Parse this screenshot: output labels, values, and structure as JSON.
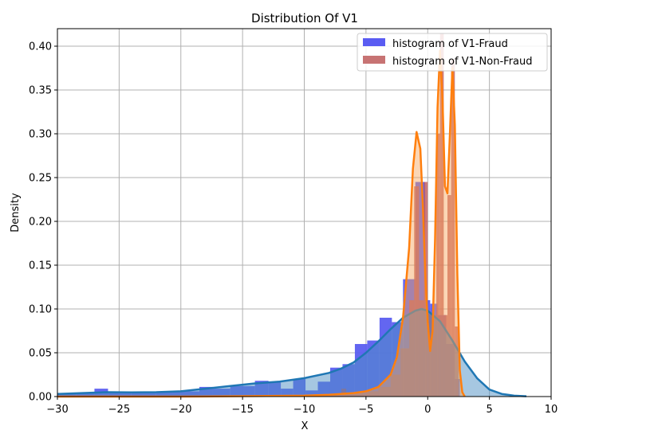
{
  "chart_data": {
    "type": "bar",
    "title": "Distribution Of V1",
    "xlabel": "X",
    "ylabel": "Density",
    "xlim": [
      -30,
      10
    ],
    "ylim": [
      0,
      0.42
    ],
    "grid": true,
    "legend_position": "top-right",
    "xticks": [
      -30,
      -25,
      -20,
      -15,
      -10,
      -5,
      0,
      5,
      10
    ],
    "xtick_labels": [
      "−30",
      "−25",
      "−20",
      "−15",
      "−10",
      "−5",
      "0",
      "5",
      "10"
    ],
    "yticks": [
      0,
      0.05,
      0.1,
      0.15,
      0.2,
      0.25,
      0.3,
      0.35,
      0.4
    ],
    "ytick_labels": [
      "0.00",
      "0.05",
      "0.10",
      "0.15",
      "0.20",
      "0.25",
      "0.30",
      "0.35",
      "0.40"
    ],
    "series": [
      {
        "name": "histogram of V1-Fraud",
        "color": "#5b5ef0",
        "legend_color": "#5a5cf2",
        "bins": [
          [
            -30.0,
            -28.5,
            0.003
          ],
          [
            -28.5,
            -27.0,
            0.004
          ],
          [
            -27.0,
            -25.9,
            0.009
          ],
          [
            -25.9,
            -24.0,
            0.004
          ],
          [
            -24.0,
            -22.0,
            0.005
          ],
          [
            -22.0,
            -20.0,
            0.005
          ],
          [
            -20.0,
            -18.5,
            0.006
          ],
          [
            -18.5,
            -17.4,
            0.011
          ],
          [
            -17.4,
            -16.0,
            0.009
          ],
          [
            -16.0,
            -14.0,
            0.012
          ],
          [
            -14.0,
            -12.9,
            0.018
          ],
          [
            -12.9,
            -11.9,
            0.016
          ],
          [
            -11.9,
            -10.9,
            0.009
          ],
          [
            -10.9,
            -9.9,
            0.02
          ],
          [
            -9.9,
            -8.9,
            0.007
          ],
          [
            -8.9,
            -7.9,
            0.017
          ],
          [
            -7.9,
            -6.9,
            0.033
          ],
          [
            -6.9,
            -5.9,
            0.037
          ],
          [
            -5.9,
            -4.9,
            0.06
          ],
          [
            -4.9,
            -3.9,
            0.064
          ],
          [
            -3.9,
            -2.9,
            0.09
          ],
          [
            -2.9,
            -2.0,
            0.085
          ],
          [
            -2.0,
            -1.0,
            0.134
          ],
          [
            -1.0,
            -0.2,
            0.245
          ],
          [
            -0.2,
            0.2,
            0.11
          ],
          [
            0.2,
            0.8,
            0.106
          ],
          [
            0.8,
            1.5,
            0.093
          ],
          [
            1.5,
            2.2,
            0.06
          ],
          [
            2.2,
            2.6,
            0.02
          ]
        ],
        "kde": [
          [
            -30,
            0.003
          ],
          [
            -28,
            0.004
          ],
          [
            -26,
            0.005
          ],
          [
            -24,
            0.0048
          ],
          [
            -22,
            0.005
          ],
          [
            -20,
            0.006
          ],
          [
            -18,
            0.009
          ],
          [
            -16,
            0.012
          ],
          [
            -14,
            0.015
          ],
          [
            -12,
            0.017
          ],
          [
            -10,
            0.021
          ],
          [
            -8,
            0.027
          ],
          [
            -7,
            0.032
          ],
          [
            -6,
            0.039
          ],
          [
            -5,
            0.05
          ],
          [
            -4,
            0.063
          ],
          [
            -3,
            0.077
          ],
          [
            -2,
            0.09
          ],
          [
            -1,
            0.098
          ],
          [
            -0.5,
            0.1
          ],
          [
            0,
            0.098
          ],
          [
            1,
            0.086
          ],
          [
            2,
            0.064
          ],
          [
            3,
            0.04
          ],
          [
            4,
            0.021
          ],
          [
            5,
            0.008
          ],
          [
            6,
            0.003
          ],
          [
            7,
            0.001
          ],
          [
            8,
            0.0004
          ]
        ]
      },
      {
        "name": "histogram of V1-Non-Fraud",
        "color": "#c25a5a",
        "legend_color": "#c77373",
        "bins": [
          [
            -8.0,
            -7.0,
            0.002
          ],
          [
            -7.0,
            -6.6,
            0.009
          ],
          [
            -6.6,
            -5.0,
            0.004
          ],
          [
            -5.0,
            -4.0,
            0.006
          ],
          [
            -4.0,
            -3.0,
            0.011
          ],
          [
            -3.0,
            -2.2,
            0.025
          ],
          [
            -2.2,
            -1.5,
            0.055
          ],
          [
            -1.5,
            -1.1,
            0.11
          ],
          [
            -1.1,
            -0.7,
            0.24
          ],
          [
            -0.7,
            -0.3,
            0.11
          ],
          [
            -0.3,
            0.0,
            0.245
          ],
          [
            0.0,
            0.4,
            0.095
          ],
          [
            0.4,
            0.7,
            0.093
          ],
          [
            0.7,
            1.0,
            0.3
          ],
          [
            1.0,
            1.3,
            0.415
          ],
          [
            1.3,
            1.6,
            0.093
          ],
          [
            1.6,
            1.9,
            0.23
          ],
          [
            1.9,
            2.2,
            0.385
          ],
          [
            2.2,
            2.5,
            0.08
          ]
        ],
        "kde": [
          [
            -30,
            0.0
          ],
          [
            -20,
            0.0
          ],
          [
            -14,
            0.0005
          ],
          [
            -10,
            0.001
          ],
          [
            -8,
            0.002
          ],
          [
            -6,
            0.004
          ],
          [
            -5,
            0.006
          ],
          [
            -4,
            0.011
          ],
          [
            -3,
            0.025
          ],
          [
            -2.5,
            0.045
          ],
          [
            -2,
            0.09
          ],
          [
            -1.5,
            0.17
          ],
          [
            -1.2,
            0.26
          ],
          [
            -0.9,
            0.302
          ],
          [
            -0.6,
            0.283
          ],
          [
            -0.4,
            0.22
          ],
          [
            -0.2,
            0.14
          ],
          [
            0.0,
            0.085
          ],
          [
            0.2,
            0.052
          ],
          [
            0.4,
            0.075
          ],
          [
            0.6,
            0.18
          ],
          [
            0.8,
            0.33
          ],
          [
            1.0,
            0.395
          ],
          [
            1.2,
            0.34
          ],
          [
            1.4,
            0.24
          ],
          [
            1.6,
            0.232
          ],
          [
            1.8,
            0.3
          ],
          [
            2.0,
            0.375
          ],
          [
            2.2,
            0.31
          ],
          [
            2.4,
            0.14
          ],
          [
            2.6,
            0.03
          ],
          [
            2.8,
            0.005
          ],
          [
            3.0,
            0.0
          ]
        ]
      }
    ]
  }
}
